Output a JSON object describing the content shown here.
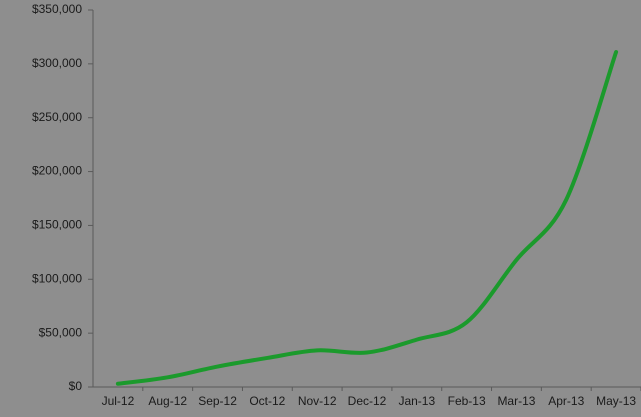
{
  "chart_data": {
    "type": "line",
    "categories": [
      "Jul-12",
      "Aug-12",
      "Sep-12",
      "Oct-12",
      "Nov-12",
      "Dec-12",
      "Jan-13",
      "Feb-13",
      "Mar-13",
      "Apr-13",
      "May-13"
    ],
    "series": [
      {
        "color": "#1b9a2c",
        "values": [
          3000,
          9000,
          19000,
          27000,
          34000,
          32000,
          44000,
          60000,
          118000,
          174000,
          311000
        ]
      }
    ],
    "ylim": [
      0,
      350000
    ],
    "yticks": [
      {
        "value": 0,
        "label": "$0"
      },
      {
        "value": 50000,
        "label": "$50,000"
      },
      {
        "value": 100000,
        "label": "$100,000"
      },
      {
        "value": 150000,
        "label": "$150,000"
      },
      {
        "value": 200000,
        "label": "$200,000"
      },
      {
        "value": 250000,
        "label": "$250,000"
      },
      {
        "value": 300000,
        "label": "$300,000"
      },
      {
        "value": 350000,
        "label": "$350,000"
      }
    ],
    "smooth": true
  }
}
